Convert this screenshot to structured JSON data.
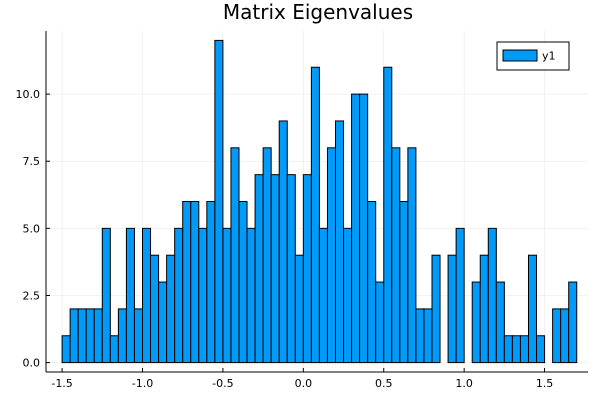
{
  "chart_data": {
    "type": "bar",
    "title": "Matrix Eigenvalues",
    "xlabel": "",
    "ylabel": "",
    "xlim": [
      -1.6,
      1.77
    ],
    "ylim": [
      -0.35,
      12.35
    ],
    "bin_width": 0.05,
    "bin_start": -1.5,
    "x_ticks": [
      -1.5,
      -1.0,
      -0.5,
      0.0,
      0.5,
      1.0,
      1.5
    ],
    "x_tick_labels": [
      "-1.5",
      "-1.0",
      "-0.5",
      "0.0",
      "0.5",
      "1.0",
      "1.5"
    ],
    "y_ticks": [
      0.0,
      2.5,
      5.0,
      7.5,
      10.0
    ],
    "y_tick_labels": [
      "0.0",
      "2.5",
      "5.0",
      "7.5",
      "10.0"
    ],
    "grid": true,
    "legend_position": "top-right",
    "series": [
      {
        "name": "y1",
        "color": "#009af9",
        "values": [
          1,
          2,
          2,
          2,
          2,
          5,
          1,
          2,
          5,
          2,
          5,
          4,
          3,
          4,
          5,
          6,
          6,
          5,
          6,
          12,
          5,
          8,
          6,
          5,
          7,
          8,
          7,
          9,
          7,
          4,
          7,
          11,
          5,
          8,
          9,
          5,
          10,
          10,
          6,
          3,
          11,
          8,
          6,
          8,
          2,
          2,
          4,
          0,
          4,
          5,
          0,
          3,
          4,
          5,
          3,
          1,
          1,
          1,
          4,
          1,
          0,
          2,
          2,
          3
        ]
      }
    ]
  }
}
